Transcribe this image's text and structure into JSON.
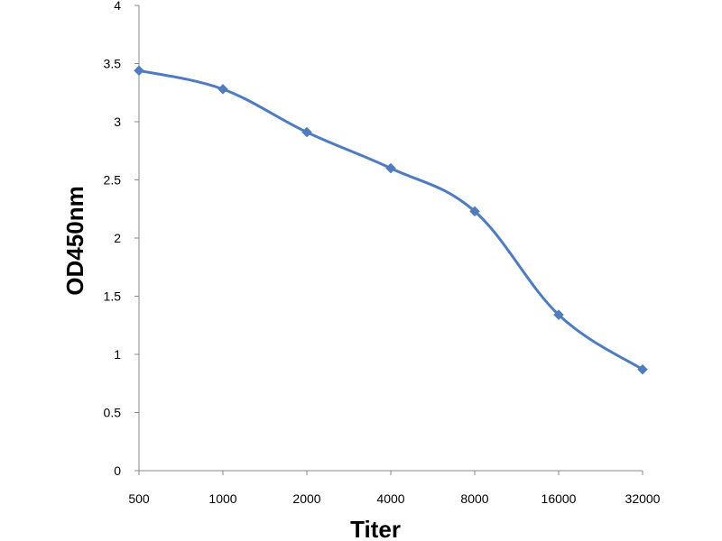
{
  "chart_data": {
    "type": "line",
    "categories": [
      "500",
      "1000",
      "2000",
      "4000",
      "8000",
      "16000",
      "32000"
    ],
    "series": [
      {
        "values": [
          3.44,
          3.28,
          2.91,
          2.6,
          2.23,
          1.34,
          0.87
        ]
      }
    ],
    "xlabel": "Titer",
    "ylabel": "OD450nm",
    "ylim": [
      0,
      4
    ],
    "yticks": [
      "0",
      "0.5",
      "1",
      "1.5",
      "2",
      "2.5",
      "3",
      "3.5",
      "4"
    ],
    "grid": false,
    "line_color": "#4F7CBE",
    "marker": "diamond"
  }
}
